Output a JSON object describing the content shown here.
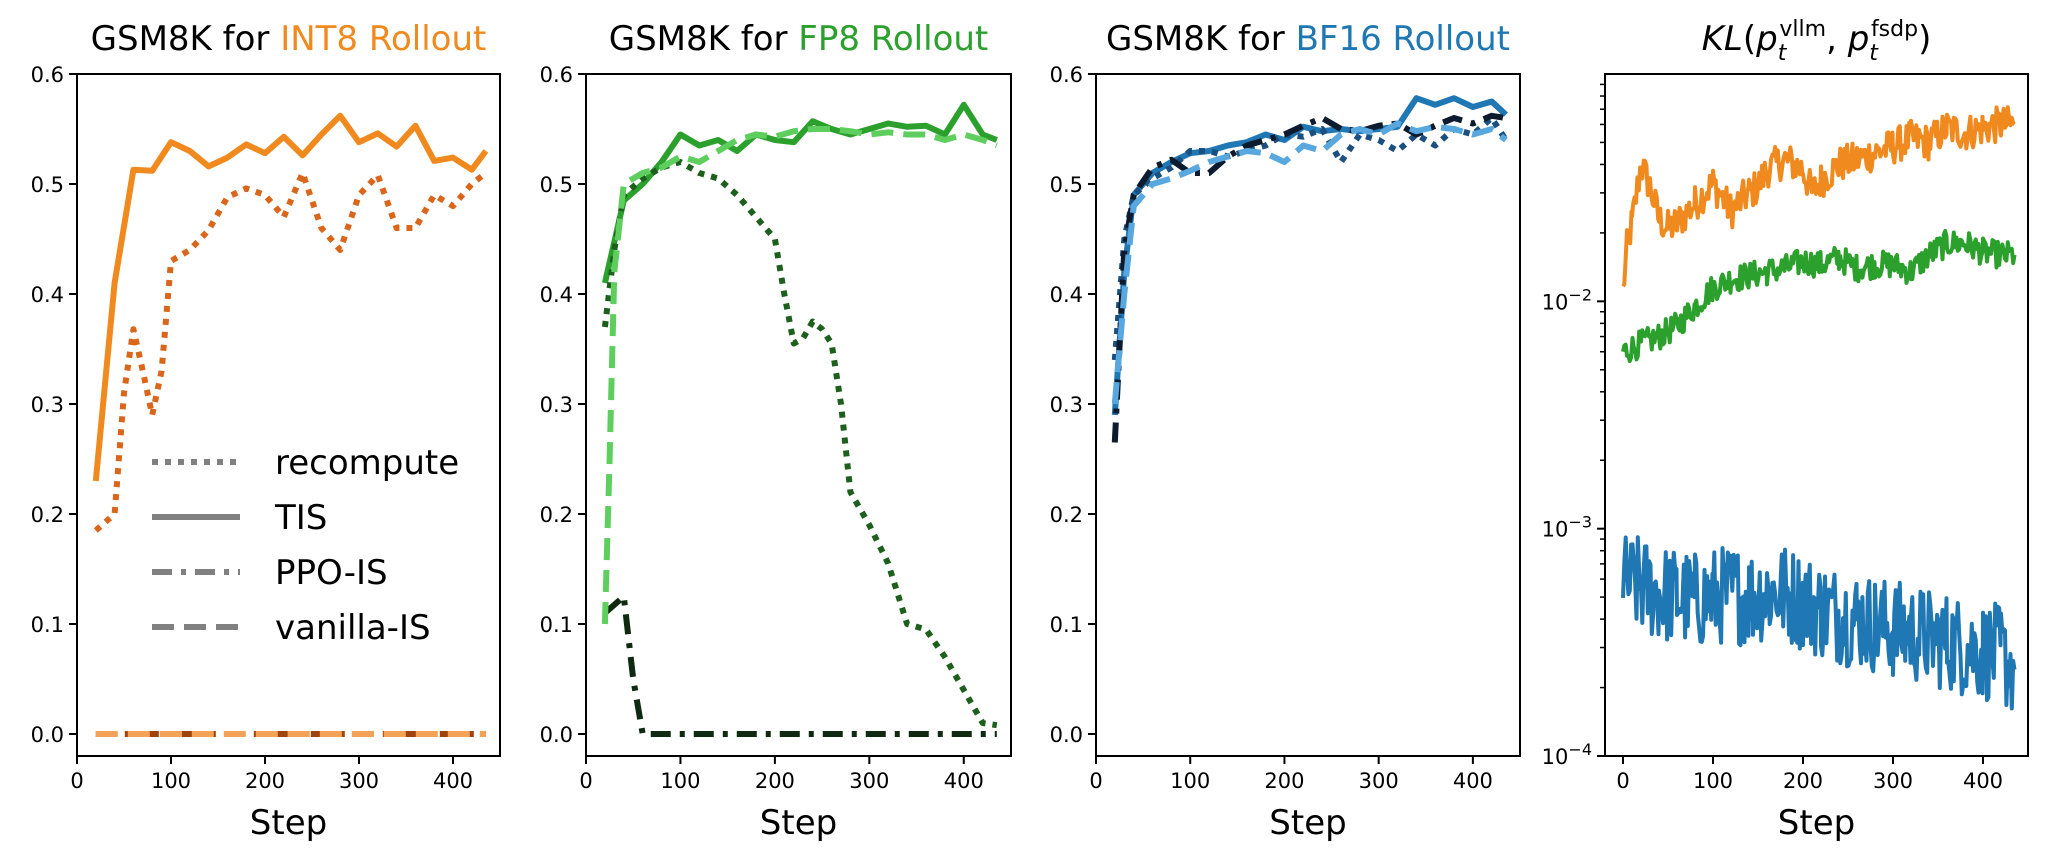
{
  "colors": {
    "int8": "#f08a1e",
    "int8_dark": "#d9661a",
    "int8_light": "#f4a257",
    "int8_brown": "#a0440f",
    "fp8": "#2ca02c",
    "fp8_dark": "#1d5f1d",
    "fp8_light": "#5ecf5e",
    "fp8_black": "#0f2a10",
    "bf16": "#1f77b4",
    "bf16_dark": "#1b4f80",
    "bf16_light": "#59a7df",
    "bf16_black": "#0d1b2e",
    "legend_gray": "#808080"
  },
  "legend": {
    "recompute": "recompute",
    "tis": "TIS",
    "ppo_is": "PPO-IS",
    "vanilla_is": "vanilla-IS"
  },
  "chart_data": [
    {
      "type": "line",
      "title": {
        "prefix": "GSM8K for",
        "highlight": "INT8 Rollout"
      },
      "xlabel": "Step",
      "ylabel": "",
      "xlim": [
        0,
        450
      ],
      "ylim": [
        -0.02,
        0.6
      ],
      "xticks": [
        0,
        100,
        200,
        300,
        400
      ],
      "yticks": [
        0.0,
        0.1,
        0.2,
        0.3,
        0.4,
        0.5,
        0.6
      ],
      "yticklabels": [
        "0.0",
        "0.1",
        "0.2",
        "0.3",
        "0.4",
        "0.5",
        "0.6"
      ],
      "grid": false,
      "legend_placement": "center-left",
      "series": [
        {
          "key": "tis",
          "color": "int8",
          "style": "solid",
          "x": [
            20,
            40,
            60,
            80,
            100,
            120,
            140,
            160,
            180,
            200,
            220,
            240,
            260,
            280,
            300,
            320,
            340,
            360,
            380,
            400,
            420,
            435
          ],
          "y": [
            0.23,
            0.41,
            0.513,
            0.512,
            0.538,
            0.53,
            0.516,
            0.524,
            0.536,
            0.528,
            0.543,
            0.526,
            0.545,
            0.562,
            0.538,
            0.546,
            0.534,
            0.553,
            0.521,
            0.524,
            0.513,
            0.53
          ]
        },
        {
          "key": "recompute",
          "color": "int8_dark",
          "style": "dotted",
          "x": [
            20,
            40,
            50,
            60,
            70,
            80,
            90,
            100,
            120,
            140,
            160,
            180,
            200,
            220,
            240,
            260,
            280,
            300,
            320,
            340,
            360,
            380,
            400,
            420,
            435
          ],
          "y": [
            0.185,
            0.2,
            0.31,
            0.368,
            0.33,
            0.29,
            0.33,
            0.43,
            0.44,
            0.458,
            0.488,
            0.496,
            0.49,
            0.47,
            0.51,
            0.46,
            0.44,
            0.49,
            0.508,
            0.46,
            0.46,
            0.49,
            0.48,
            0.5,
            0.51
          ]
        },
        {
          "key": "ppo_is",
          "color": "int8_brown",
          "style": "dashdot",
          "x": [
            20,
            435
          ],
          "y": [
            0.0,
            0.0
          ]
        },
        {
          "key": "vanilla_is",
          "color": "int8_light",
          "style": "dashed",
          "x": [
            20,
            435
          ],
          "y": [
            0.0,
            0.0
          ]
        }
      ]
    },
    {
      "type": "line",
      "title": {
        "prefix": "GSM8K for",
        "highlight": "FP8 Rollout"
      },
      "xlabel": "Step",
      "ylabel": "",
      "xlim": [
        0,
        450
      ],
      "ylim": [
        -0.02,
        0.6
      ],
      "xticks": [
        0,
        100,
        200,
        300,
        400
      ],
      "yticks": [
        0.0,
        0.1,
        0.2,
        0.3,
        0.4,
        0.5,
        0.6
      ],
      "yticklabels": [
        "0.0",
        "0.1",
        "0.2",
        "0.3",
        "0.4",
        "0.5",
        "0.6"
      ],
      "grid": false,
      "series": [
        {
          "key": "tis",
          "color": "fp8",
          "style": "solid",
          "x": [
            20,
            40,
            60,
            80,
            100,
            120,
            140,
            160,
            180,
            200,
            220,
            240,
            260,
            280,
            300,
            320,
            340,
            360,
            380,
            400,
            420,
            435
          ],
          "y": [
            0.41,
            0.485,
            0.5,
            0.52,
            0.545,
            0.535,
            0.54,
            0.53,
            0.545,
            0.54,
            0.538,
            0.557,
            0.55,
            0.545,
            0.55,
            0.555,
            0.552,
            0.553,
            0.545,
            0.572,
            0.545,
            0.54
          ]
        },
        {
          "key": "recompute",
          "color": "fp8_dark",
          "style": "dotted",
          "x": [
            20,
            30,
            40,
            60,
            80,
            100,
            120,
            140,
            160,
            180,
            200,
            210,
            220,
            230,
            240,
            250,
            260,
            270,
            280,
            300,
            320,
            340,
            360,
            380,
            400,
            420,
            435
          ],
          "y": [
            0.37,
            0.44,
            0.49,
            0.505,
            0.515,
            0.52,
            0.51,
            0.505,
            0.49,
            0.47,
            0.45,
            0.4,
            0.355,
            0.36,
            0.375,
            0.368,
            0.355,
            0.3,
            0.22,
            0.19,
            0.155,
            0.1,
            0.095,
            0.07,
            0.04,
            0.01,
            0.008
          ]
        },
        {
          "key": "ppo_is",
          "color": "fp8_black",
          "style": "dashdot",
          "x": [
            20,
            40,
            50,
            60,
            80,
            120,
            200,
            300,
            400,
            435
          ],
          "y": [
            0.11,
            0.125,
            0.05,
            0.0,
            0.0,
            0.0,
            0.0,
            0.0,
            0.0,
            0.0
          ]
        },
        {
          "key": "vanilla_is",
          "color": "fp8_light",
          "style": "dashed",
          "x": [
            20,
            25,
            30,
            40,
            60,
            80,
            100,
            120,
            140,
            160,
            180,
            200,
            220,
            240,
            260,
            280,
            300,
            320,
            340,
            360,
            380,
            400,
            420,
            435
          ],
          "y": [
            0.1,
            0.25,
            0.42,
            0.5,
            0.51,
            0.515,
            0.525,
            0.52,
            0.53,
            0.54,
            0.545,
            0.543,
            0.548,
            0.55,
            0.55,
            0.548,
            0.545,
            0.547,
            0.545,
            0.545,
            0.54,
            0.545,
            0.54,
            0.535
          ]
        }
      ]
    },
    {
      "type": "line",
      "title": {
        "prefix": "GSM8K for",
        "highlight": "BF16 Rollout"
      },
      "xlabel": "Step",
      "ylabel": "",
      "xlim": [
        0,
        450
      ],
      "ylim": [
        -0.02,
        0.6
      ],
      "xticks": [
        0,
        100,
        200,
        300,
        400
      ],
      "yticks": [
        0.0,
        0.1,
        0.2,
        0.3,
        0.4,
        0.5,
        0.6
      ],
      "yticklabels": [
        "0.0",
        "0.1",
        "0.2",
        "0.3",
        "0.4",
        "0.5",
        "0.6"
      ],
      "grid": false,
      "series": [
        {
          "key": "tis",
          "color": "bf16",
          "style": "solid",
          "x": [
            20,
            30,
            40,
            60,
            80,
            100,
            120,
            140,
            160,
            180,
            200,
            220,
            240,
            260,
            280,
            300,
            320,
            340,
            360,
            380,
            400,
            420,
            435
          ],
          "y": [
            0.29,
            0.42,
            0.49,
            0.51,
            0.52,
            0.528,
            0.53,
            0.535,
            0.538,
            0.545,
            0.54,
            0.552,
            0.548,
            0.55,
            0.548,
            0.55,
            0.552,
            0.578,
            0.572,
            0.578,
            0.57,
            0.575,
            0.563
          ]
        },
        {
          "key": "recompute",
          "color": "bf16_dark",
          "style": "dotted",
          "x": [
            20,
            30,
            40,
            60,
            80,
            100,
            120,
            140,
            160,
            180,
            200,
            220,
            240,
            260,
            280,
            300,
            320,
            340,
            360,
            380,
            400,
            420,
            435
          ],
          "y": [
            0.34,
            0.45,
            0.49,
            0.505,
            0.515,
            0.53,
            0.53,
            0.525,
            0.53,
            0.535,
            0.545,
            0.543,
            0.55,
            0.52,
            0.545,
            0.54,
            0.53,
            0.545,
            0.535,
            0.55,
            0.545,
            0.56,
            0.54
          ]
        },
        {
          "key": "ppo_is",
          "color": "bf16_black",
          "style": "dashdot",
          "x": [
            20,
            30,
            40,
            60,
            80,
            100,
            120,
            140,
            160,
            180,
            200,
            220,
            240,
            260,
            280,
            300,
            320,
            340,
            360,
            380,
            400,
            420,
            435
          ],
          "y": [
            0.265,
            0.44,
            0.49,
            0.515,
            0.522,
            0.51,
            0.51,
            0.525,
            0.535,
            0.54,
            0.545,
            0.553,
            0.56,
            0.55,
            0.548,
            0.553,
            0.555,
            0.545,
            0.553,
            0.56,
            0.555,
            0.562,
            0.56
          ]
        },
        {
          "key": "vanilla_is",
          "color": "bf16_light",
          "style": "dashed",
          "x": [
            20,
            30,
            40,
            60,
            80,
            100,
            120,
            140,
            160,
            180,
            200,
            220,
            240,
            260,
            280,
            300,
            320,
            340,
            360,
            380,
            400,
            420,
            435
          ],
          "y": [
            0.3,
            0.4,
            0.48,
            0.5,
            0.505,
            0.512,
            0.52,
            0.525,
            0.53,
            0.528,
            0.52,
            0.535,
            0.53,
            0.545,
            0.55,
            0.545,
            0.555,
            0.548,
            0.552,
            0.55,
            0.545,
            0.55,
            0.54
          ]
        }
      ]
    },
    {
      "type": "line",
      "title": {
        "math": "KL(p_t^vllm, p_t^fsdp)"
      },
      "xlabel": "Step",
      "ylabel": "",
      "yscale": "log",
      "xlim": [
        -20,
        450
      ],
      "ylim": [
        0.0001,
        0.1
      ],
      "xticks": [
        0,
        100,
        200,
        300,
        400
      ],
      "yticks": [
        0.0001,
        0.001,
        0.01
      ],
      "yticklabels": [
        {
          "base": "10",
          "exp": "−4"
        },
        {
          "base": "10",
          "exp": "−3"
        },
        {
          "base": "10",
          "exp": "−2"
        }
      ],
      "grid": false,
      "series": [
        {
          "key": "int8_kl",
          "color": "int8",
          "style": "solid",
          "noise": 0.08,
          "x": [
            0,
            5,
            10,
            20,
            30,
            40,
            50,
            60,
            80,
            100,
            120,
            140,
            150,
            160,
            180,
            200,
            210,
            220,
            240,
            260,
            280,
            300,
            320,
            340,
            360,
            380,
            400,
            420,
            435
          ],
          "y": [
            0.011,
            0.018,
            0.022,
            0.04,
            0.032,
            0.023,
            0.021,
            0.022,
            0.027,
            0.033,
            0.025,
            0.03,
            0.032,
            0.038,
            0.042,
            0.038,
            0.03,
            0.034,
            0.04,
            0.042,
            0.045,
            0.048,
            0.052,
            0.05,
            0.058,
            0.055,
            0.058,
            0.06,
            0.06
          ]
        },
        {
          "key": "fp8_kl",
          "color": "fp8",
          "style": "solid",
          "noise": 0.06,
          "x": [
            0,
            20,
            40,
            60,
            80,
            100,
            120,
            140,
            160,
            180,
            200,
            220,
            240,
            260,
            280,
            300,
            320,
            340,
            360,
            380,
            400,
            420,
            435
          ],
          "y": [
            0.006,
            0.0065,
            0.007,
            0.0078,
            0.0095,
            0.0115,
            0.0125,
            0.013,
            0.0135,
            0.014,
            0.015,
            0.0145,
            0.0155,
            0.014,
            0.0145,
            0.0145,
            0.0135,
            0.016,
            0.018,
            0.018,
            0.0165,
            0.016,
            0.016
          ]
        },
        {
          "key": "bf16_kl",
          "color": "bf16",
          "style": "solid",
          "noise": 0.22,
          "x": [
            0,
            20,
            40,
            60,
            80,
            100,
            120,
            140,
            160,
            180,
            200,
            220,
            240,
            260,
            280,
            300,
            320,
            340,
            360,
            380,
            400,
            420,
            435
          ],
          "y": [
            0.00058,
            0.00056,
            0.00052,
            0.0005,
            0.00048,
            0.0005,
            0.00052,
            0.0005,
            0.00053,
            0.00052,
            0.00048,
            0.00044,
            0.00042,
            0.0004,
            0.00038,
            0.00036,
            0.00035,
            0.00033,
            0.00032,
            0.0003,
            0.00029,
            0.00028,
            0.00024
          ]
        }
      ]
    }
  ]
}
